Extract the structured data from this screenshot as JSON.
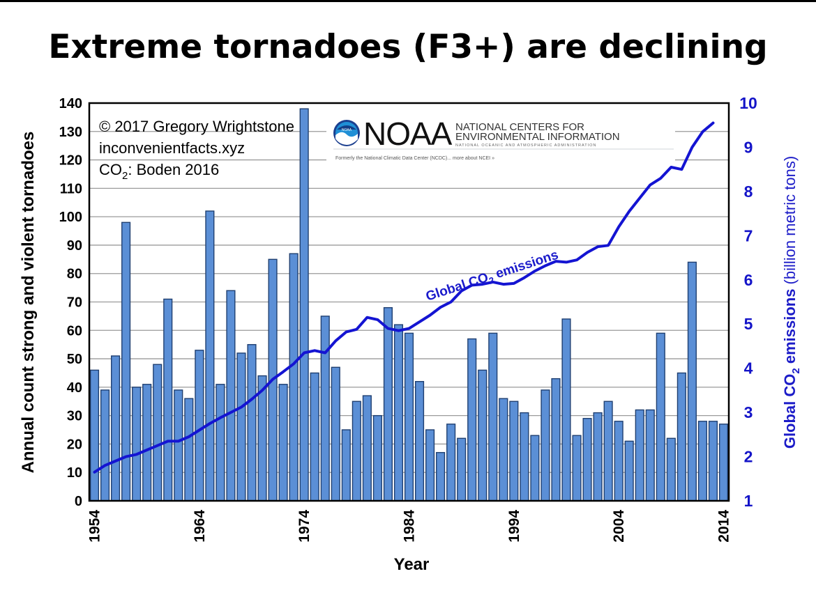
{
  "title": "Extreme tornadoes (F3+) are declining",
  "credits": {
    "line1": "© 2017 Gregory Wrightstone",
    "line2": "inconvenientfacts.xyz",
    "line3_prefix": "CO",
    "line3_sub": "2",
    "line3_suffix": ": Boden 2016"
  },
  "noaa": {
    "wordmark": "NOAA",
    "line1": "NATIONAL CENTERS FOR",
    "line2": "ENVIRONMENTAL INFORMATION",
    "subline": "NATIONAL OCEANIC AND ATMOSPHERIC ADMINISTRATION",
    "formerly": "Formerly the National Climatic Data Center (NCDC)... more about NCEI »",
    "logo_text": "NOAA"
  },
  "colors": {
    "bar_fill": "#5b8fd6",
    "bar_edge": "#1f3f70",
    "line": "#1414d2",
    "right_axis_text": "#1414c8"
  },
  "chart_data": {
    "type": "bar",
    "xlabel": "Year",
    "ylabel": "Annual count strong and violent tornadoes",
    "y2label": {
      "prefix": "Global CO",
      "sub": "2",
      "middle": " emissions ",
      "suffix": "(billion metric tons)"
    },
    "ylim": [
      0,
      140
    ],
    "yticks": [
      0,
      10,
      20,
      30,
      40,
      50,
      60,
      70,
      80,
      90,
      100,
      110,
      120,
      130,
      140
    ],
    "y2lim": [
      1,
      10
    ],
    "y2ticks": [
      1,
      2,
      3,
      4,
      5,
      6,
      7,
      8,
      9,
      10
    ],
    "xticks": [
      "1954",
      "1964",
      "1974",
      "1984",
      "1994",
      "2004",
      "2014"
    ],
    "grid": true,
    "series": [
      {
        "name": "Annual count strong and violent tornadoes",
        "type": "bar",
        "x": [
          1954,
          1955,
          1956,
          1957,
          1958,
          1959,
          1960,
          1961,
          1962,
          1963,
          1964,
          1965,
          1966,
          1967,
          1968,
          1969,
          1970,
          1971,
          1972,
          1973,
          1974,
          1975,
          1976,
          1977,
          1978,
          1979,
          1980,
          1981,
          1982,
          1983,
          1984,
          1985,
          1986,
          1987,
          1988,
          1989,
          1990,
          1991,
          1992,
          1993,
          1994,
          1995,
          1996,
          1997,
          1998,
          1999,
          2000,
          2001,
          2002,
          2003,
          2004,
          2005,
          2006,
          2007,
          2008,
          2009,
          2010,
          2011,
          2012,
          2013,
          2014
        ],
        "values": [
          46,
          39,
          51,
          98,
          40,
          41,
          48,
          71,
          39,
          36,
          53,
          102,
          41,
          74,
          52,
          55,
          44,
          85,
          41,
          87,
          138,
          45,
          65,
          47,
          25,
          35,
          37,
          30,
          68,
          62,
          59,
          42,
          25,
          17,
          27,
          22,
          57,
          46,
          59,
          36,
          35,
          31,
          23,
          39,
          43,
          64,
          23,
          29,
          31,
          35,
          28,
          21,
          32,
          32,
          59,
          22,
          45,
          84,
          28,
          28,
          27
        ]
      },
      {
        "name": "Global CO2 emissions",
        "type": "line",
        "axis": "right",
        "x": [
          1954,
          1955,
          1956,
          1957,
          1958,
          1959,
          1960,
          1961,
          1962,
          1963,
          1964,
          1965,
          1966,
          1967,
          1968,
          1969,
          1970,
          1971,
          1972,
          1973,
          1974,
          1975,
          1976,
          1977,
          1978,
          1979,
          1980,
          1981,
          1982,
          1983,
          1984,
          1985,
          1986,
          1987,
          1988,
          1989,
          1990,
          1991,
          1992,
          1993,
          1994,
          1995,
          1996,
          1997,
          1998,
          1999,
          2000,
          2001,
          2002,
          2003,
          2004,
          2005,
          2006,
          2007,
          2008,
          2009,
          2010,
          2011,
          2012,
          2013
        ],
        "values": [
          1.65,
          1.8,
          1.9,
          2.0,
          2.05,
          2.15,
          2.25,
          2.35,
          2.35,
          2.45,
          2.6,
          2.75,
          2.88,
          3.0,
          3.12,
          3.3,
          3.5,
          3.75,
          3.92,
          4.1,
          4.35,
          4.4,
          4.35,
          4.62,
          4.82,
          4.88,
          5.15,
          5.1,
          4.9,
          4.85,
          4.9,
          5.05,
          5.2,
          5.38,
          5.5,
          5.75,
          5.88,
          5.9,
          5.95,
          5.9,
          5.92,
          6.05,
          6.2,
          6.32,
          6.42,
          6.4,
          6.45,
          6.62,
          6.75,
          6.78,
          7.2,
          7.55,
          7.85,
          8.15,
          8.3,
          8.55,
          8.5,
          9.0,
          9.35,
          9.55
        ]
      }
    ],
    "annotations": [
      {
        "text_prefix": "Global CO",
        "text_sub": "2",
        "text_suffix": " emissions",
        "target": "Global CO2 emissions"
      }
    ]
  }
}
